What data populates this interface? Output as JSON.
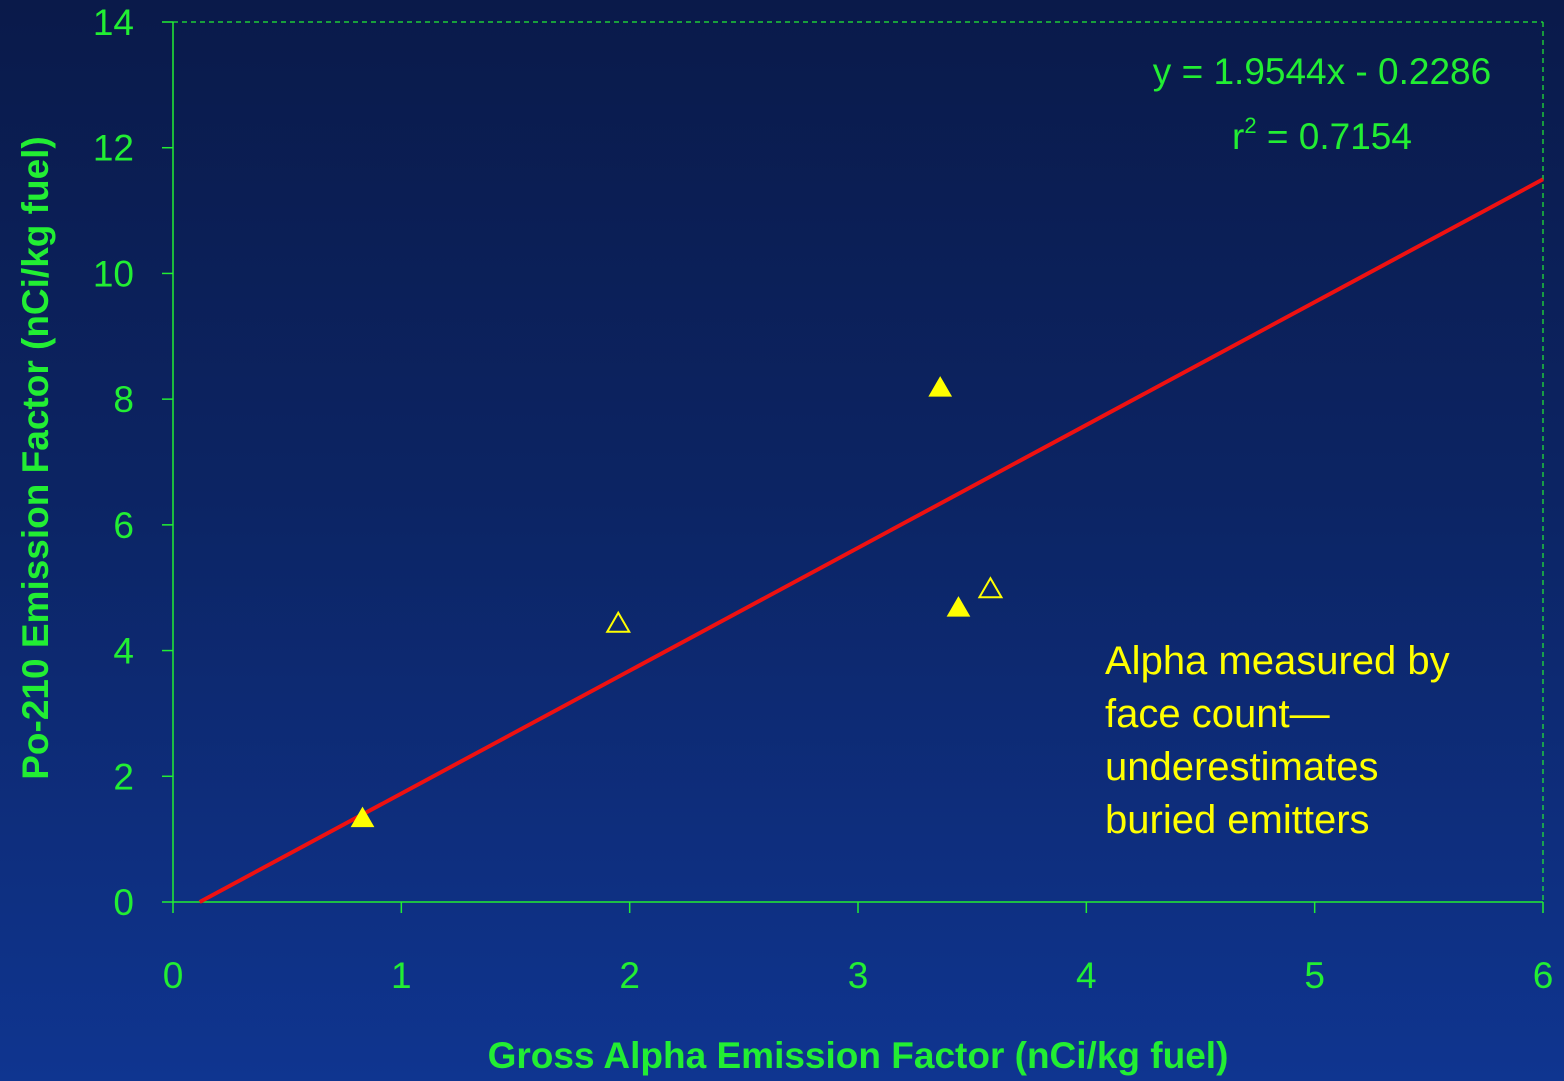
{
  "colors": {
    "text": "#22ee33",
    "grid": "#22ee33",
    "trendline": "#ee1111",
    "marker": "#ffff00",
    "note": "#ffff00",
    "background_top": "#0a1a4a",
    "background_bottom": "#0f3590"
  },
  "chart_data": {
    "type": "scatter",
    "title": "",
    "xlabel": "Gross Alpha Emission Factor (nCi/kg fuel)",
    "ylabel": "Po-210 Emission Factor (nCi/kg fuel)",
    "xlim": [
      0,
      6
    ],
    "ylim": [
      0,
      14
    ],
    "xticks": [
      "0",
      "1",
      "2",
      "3",
      "4",
      "5",
      "6"
    ],
    "yticks": [
      "0",
      "2",
      "4",
      "6",
      "8",
      "10",
      "12",
      "14"
    ],
    "grid": false,
    "series": [
      {
        "marker": "filled-triangle",
        "points": [
          {
            "x": 0.83,
            "y": 1.35
          },
          {
            "x": 3.36,
            "y": 8.2
          },
          {
            "x": 3.44,
            "y": 4.7
          }
        ]
      },
      {
        "marker": "open-triangle",
        "points": [
          {
            "x": 1.95,
            "y": 4.45
          },
          {
            "x": 3.58,
            "y": 5.0
          }
        ]
      }
    ],
    "trendline": {
      "slope": 1.9544,
      "intercept": -0.2286,
      "x_range": [
        0.117,
        6
      ]
    },
    "annotations": {
      "equation": "y = 1.9544x - 0.2286",
      "r2_prefix": "r",
      "r2_exponent": "2",
      "r2_value": " = 0.7154",
      "note_lines": [
        "Alpha measured by",
        "face count—",
        "underestimates",
        "buried emitters"
      ]
    }
  }
}
